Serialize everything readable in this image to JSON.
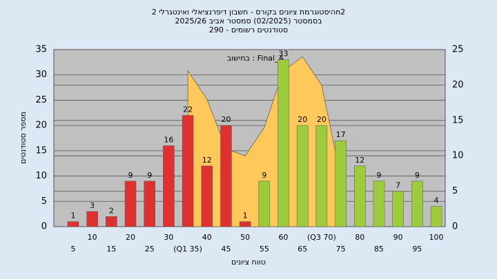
{
  "chart_data": {
    "type": "bar",
    "title_lines": [
      "היסטוגרמת ציונים בקורס - חשבון דיפרנציאלי ואינטגרלי 2n2",
      "בסמסטר (02/2025) סמסטר אביב 2025/26",
      "סטודנטים רשומים - 290"
    ],
    "annotation": "בחישוב : Final_A",
    "xlabel": "טווח ציונים",
    "ylabel": "מספר סטודנטים",
    "categories": [
      "5",
      "10",
      "15",
      "20",
      "25",
      "30",
      "(Q1 35)",
      "40",
      "45",
      "50",
      "55",
      "60",
      "65",
      "(Q3 70)",
      "75",
      "80",
      "85",
      "90",
      "95",
      "100"
    ],
    "values": [
      1,
      3,
      2,
      9,
      9,
      16,
      22,
      12,
      20,
      1,
      9,
      33,
      20,
      20,
      17,
      12,
      9,
      7,
      9,
      4
    ],
    "colors": [
      "#e03131",
      "#e03131",
      "#e03131",
      "#e03131",
      "#e03131",
      "#e03131",
      "#e03131",
      "#e03131",
      "#e03131",
      "#e03131",
      "#9ccc3c",
      "#9ccc3c",
      "#9ccc3c",
      "#9ccc3c",
      "#9ccc3c",
      "#9ccc3c",
      "#9ccc3c",
      "#9ccc3c",
      "#9ccc3c",
      "#9ccc3c"
    ],
    "area": {
      "axis": "y2",
      "color": "#ffc85a",
      "values": [
        null,
        null,
        null,
        null,
        null,
        null,
        22,
        18,
        11,
        10,
        14,
        22,
        24,
        20,
        7,
        null,
        null,
        null,
        null,
        null
      ]
    },
    "ylim": [
      0,
      35
    ],
    "yticks": [
      0,
      5,
      10,
      15,
      20,
      25,
      30,
      35
    ],
    "y2lim": [
      0,
      25
    ],
    "y2ticks": [
      0,
      5,
      10,
      15,
      20,
      25
    ],
    "grid": true
  }
}
